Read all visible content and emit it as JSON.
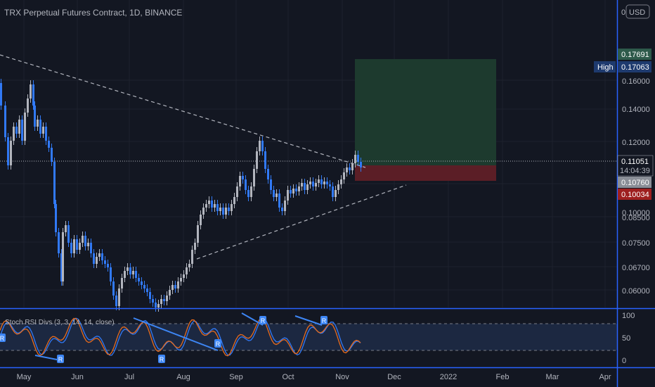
{
  "title": "TRX Perpetual Futures Contract, 1D, BINANCE",
  "currency_button": "USD",
  "currency_zero": "0",
  "chart_data": {
    "type": "candlestick",
    "price_axis": {
      "ticks": [
        "0.16000",
        "0.14000",
        "0.12000",
        "0.10000",
        "0.08500",
        "0.07500",
        "0.06700",
        "0.06000"
      ]
    },
    "time_axis": {
      "labels": [
        "May",
        "Jun",
        "Jul",
        "Aug",
        "Sep",
        "Oct",
        "Nov",
        "Dec",
        "2022",
        "Feb",
        "Mar",
        "Apr"
      ]
    },
    "price_tags": {
      "target": "0.17691",
      "high_label": "High",
      "high": "0.17063",
      "last": "0.11051",
      "countdown": "14:04:39",
      "entry": "0.10760",
      "stop": "0.10034"
    },
    "colors": {
      "candle": "#3179f5",
      "candle_up": "#b2b5be",
      "profit_zone": "#1d3a2e",
      "loss_zone": "#5b1e26",
      "target_tag": "#2e5a4b",
      "high_tag": "#1e3a6e",
      "entry_tag": "#8a8e97",
      "stop_tag": "#9e1f1f",
      "oscillator_k": "#e86b1c",
      "oscillator_d": "#3179f5",
      "divergence_line": "#3d86f5"
    },
    "oscillator": {
      "label": "Stoch RSI Divs (3, 3, 14, 14, close)",
      "axis_ticks": [
        "100",
        "50",
        "0"
      ],
      "divergence_marker": "R"
    }
  }
}
